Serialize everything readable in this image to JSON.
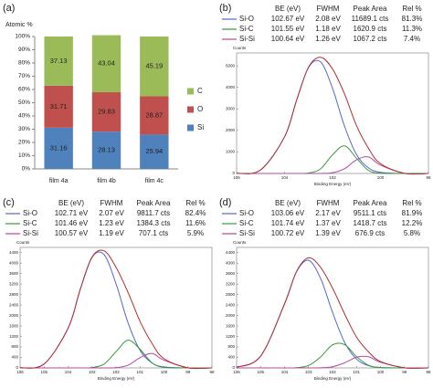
{
  "chart_data": [
    {
      "type": "bar",
      "label": "(a)",
      "y_label": "Atomic %",
      "categories": [
        "film 4a",
        "film 4b",
        "film 4c"
      ],
      "series": [
        {
          "name": "Si",
          "color": "#4f81bd",
          "values": [
            31.16,
            28.13,
            25.94
          ]
        },
        {
          "name": "O",
          "color": "#c0504d",
          "values": [
            31.71,
            29.83,
            28.87
          ]
        },
        {
          "name": "C",
          "color": "#9bbb59",
          "values": [
            37.13,
            43.04,
            45.19
          ]
        }
      ],
      "ylim": [
        0,
        100
      ],
      "yticks": [
        {
          "value": 0,
          "label": "0%"
        },
        {
          "value": 10,
          "label": "10%"
        },
        {
          "value": 20,
          "label": "20%"
        },
        {
          "value": 30,
          "label": "30%"
        },
        {
          "value": 40,
          "label": "40%"
        },
        {
          "value": 50,
          "label": "50%"
        },
        {
          "value": 60,
          "label": "60%"
        },
        {
          "value": 70,
          "label": "70%"
        },
        {
          "value": 80,
          "label": "80%"
        },
        {
          "value": 90,
          "label": "90%"
        },
        {
          "value": 100,
          "label": "100%"
        }
      ]
    },
    {
      "type": "line",
      "label": "(b)",
      "x_label": "Binding Energy (eV)",
      "y_label": "Counts",
      "table_header": [
        "BE (eV)",
        "FWHM",
        "Peak Area",
        "Rel %"
      ],
      "table": [
        [
          "102.67 eV",
          "2.08 eV",
          "11689.1 cts",
          "81.3%"
        ],
        [
          "101.55 eV",
          "1.18 eV",
          "1620.9 cts",
          "11.3%"
        ],
        [
          "100.64 eV",
          "1.26 eV",
          "1067.2 cts",
          "7.4%"
        ]
      ],
      "x": [
        106,
        105,
        104,
        103.5,
        103,
        102.5,
        102,
        101.5,
        101,
        100.5,
        100,
        99,
        98
      ],
      "series": [
        {
          "name": "Si-O",
          "color": "#5566cc",
          "values": [
            4,
            164,
            1700,
            3394,
            4921,
            5185,
            3960,
            2196,
            882,
            259,
            55,
            0,
            0
          ]
        },
        {
          "name": "Si-C",
          "color": "#3a9a3a",
          "values": [
            0,
            0,
            0,
            1,
            19,
            213,
            864,
            1283,
            708,
            143,
            11,
            0,
            0
          ]
        },
        {
          "name": "Si-Si",
          "color": "#b04aa0",
          "values": [
            0,
            0,
            0,
            0,
            0,
            2,
            31,
            218,
            634,
            768,
            389,
            7,
            0
          ]
        },
        {
          "color": "#b03030",
          "values": [
            4,
            164,
            1700,
            3395,
            4940,
            5400,
            4855,
            3697,
            2224,
            1170,
            455,
            7,
            0
          ]
        }
      ],
      "xlim": [
        106,
        98
      ],
      "xticks": [
        106,
        104,
        102,
        100,
        98
      ],
      "ylim": [
        0,
        5600
      ],
      "yticks": [
        0,
        1000,
        2000,
        3000,
        4000,
        5000
      ]
    },
    {
      "type": "line",
      "label": "(c)",
      "x_label": "Binding Energy (eV)",
      "y_label": "Counts",
      "table_header": [
        "BE (eV)",
        "FWHM",
        "Peak Area",
        "Rel %"
      ],
      "table": [
        [
          "102.71 eV",
          "2.07 eV",
          "9811.7 cts",
          "82.4%"
        ],
        [
          "101.46 eV",
          "1.23 eV",
          "1384.3 cts",
          "11.6%"
        ],
        [
          "100.57 eV",
          "1.19 eV",
          "707.1 cts",
          "5.9%"
        ]
      ],
      "x": [
        106,
        105,
        104,
        103.5,
        103,
        102.5,
        102,
        101.5,
        101,
        100.5,
        100,
        99,
        98
      ],
      "series": [
        {
          "name": "Si-O",
          "color": "#5566cc",
          "values": [
            4,
            150,
            1512,
            2973,
            4218,
            4326,
            3214,
            1726,
            673,
            188,
            39,
            0,
            0
          ]
        },
        {
          "name": "Si-C",
          "color": "#3a9a3a",
          "values": [
            0,
            0,
            0,
            0,
            14,
            146,
            619,
            1057,
            716,
            195,
            21,
            0,
            0
          ]
        },
        {
          "name": "Si-Si",
          "color": "#b04aa0",
          "values": [
            0,
            0,
            0,
            0,
            0,
            0,
            10,
            102,
            390,
            553,
            293,
            5,
            0
          ]
        },
        {
          "color": "#b03030",
          "values": [
            4,
            150,
            1512,
            2973,
            4232,
            4472,
            3843,
            2885,
            1779,
            936,
            353,
            5,
            0
          ]
        }
      ],
      "xlim": [
        106,
        98
      ],
      "xticks": [
        106,
        105,
        104,
        103,
        102,
        101,
        100,
        99,
        98
      ],
      "ylim": [
        0,
        4600
      ],
      "yticks": [
        0,
        400,
        800,
        1200,
        1600,
        2000,
        2400,
        2800,
        3200,
        3600,
        4000,
        4400
      ]
    },
    {
      "type": "line",
      "label": "(d)",
      "x_label": "Binding Energy (eV)",
      "y_label": "Counts",
      "table_header": [
        "BE (eV)",
        "FWHM",
        "Peak Area",
        "Rel %"
      ],
      "table": [
        [
          "103.06 eV",
          "2.17 eV",
          "9511.1 cts",
          "81.9%"
        ],
        [
          "101.74 eV",
          "1.37 eV",
          "1418.7 cts",
          "12.2%"
        ],
        [
          "100.72 eV",
          "1.39 eV",
          "676.9 cts",
          "5.8%"
        ]
      ],
      "x": [
        106,
        105,
        104,
        103.5,
        103,
        102.5,
        102,
        101.5,
        101,
        100.5,
        100,
        99,
        98
      ],
      "series": [
        {
          "name": "Si-O",
          "color": "#5566cc",
          "values": [
            25,
            447,
            2447,
            3673,
            4109,
            3421,
            2124,
            985,
            338,
            87,
            17,
            0,
            0
          ]
        },
        {
          "name": "Si-C",
          "color": "#3a9a3a",
          "values": [
            0,
            0,
            1,
            10,
            93,
            415,
            880,
            893,
            433,
            100,
            11,
            0,
            0
          ]
        },
        {
          "name": "Si-Si",
          "color": "#b04aa0",
          "values": [
            0,
            0,
            0,
            0,
            0,
            5,
            44,
            191,
            408,
            426,
            217,
            6,
            0
          ]
        },
        {
          "color": "#b03030",
          "values": [
            25,
            447,
            2448,
            3683,
            4202,
            3841,
            3048,
            2069,
            1179,
            613,
            245,
            6,
            0
          ]
        }
      ],
      "xlim": [
        106,
        98
      ],
      "xticks": [
        106,
        105,
        104,
        103,
        102,
        101,
        100,
        99,
        98
      ],
      "ylim": [
        0,
        4600
      ],
      "yticks": [
        0,
        400,
        800,
        1200,
        1600,
        2000,
        2400,
        2800,
        3200,
        3600,
        4000,
        4400
      ]
    }
  ]
}
